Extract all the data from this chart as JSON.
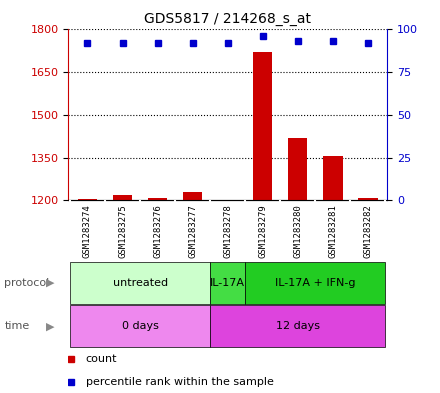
{
  "title": "GDS5817 / 214268_s_at",
  "samples": [
    "GSM1283274",
    "GSM1283275",
    "GSM1283276",
    "GSM1283277",
    "GSM1283278",
    "GSM1283279",
    "GSM1283280",
    "GSM1283281",
    "GSM1283282"
  ],
  "counts": [
    1204,
    1218,
    1208,
    1228,
    1200,
    1720,
    1418,
    1355,
    1208
  ],
  "percentile_ranks": [
    92,
    92,
    92,
    92,
    92,
    96,
    93,
    93,
    92
  ],
  "ylim_left": [
    1200,
    1800
  ],
  "ylim_right": [
    0,
    100
  ],
  "yticks_left": [
    1200,
    1350,
    1500,
    1650,
    1800
  ],
  "yticks_right": [
    0,
    25,
    50,
    75,
    100
  ],
  "bar_color": "#cc0000",
  "dot_color": "#0000cc",
  "protocol_groups": [
    {
      "label": "untreated",
      "start": 0,
      "end": 4,
      "color": "#ccffcc"
    },
    {
      "label": "IL-17A",
      "start": 4,
      "end": 5,
      "color": "#44dd44"
    },
    {
      "label": "IL-17A + IFN-g",
      "start": 5,
      "end": 9,
      "color": "#22cc22"
    }
  ],
  "time_groups": [
    {
      "label": "0 days",
      "start": 0,
      "end": 4,
      "color": "#ee88ee"
    },
    {
      "label": "12 days",
      "start": 4,
      "end": 9,
      "color": "#dd44dd"
    }
  ],
  "sample_box_color": "#cccccc",
  "sample_divider_color": "#ffffff",
  "legend_count_color": "#cc0000",
  "legend_dot_color": "#0000cc",
  "left_label_color": "#888888"
}
